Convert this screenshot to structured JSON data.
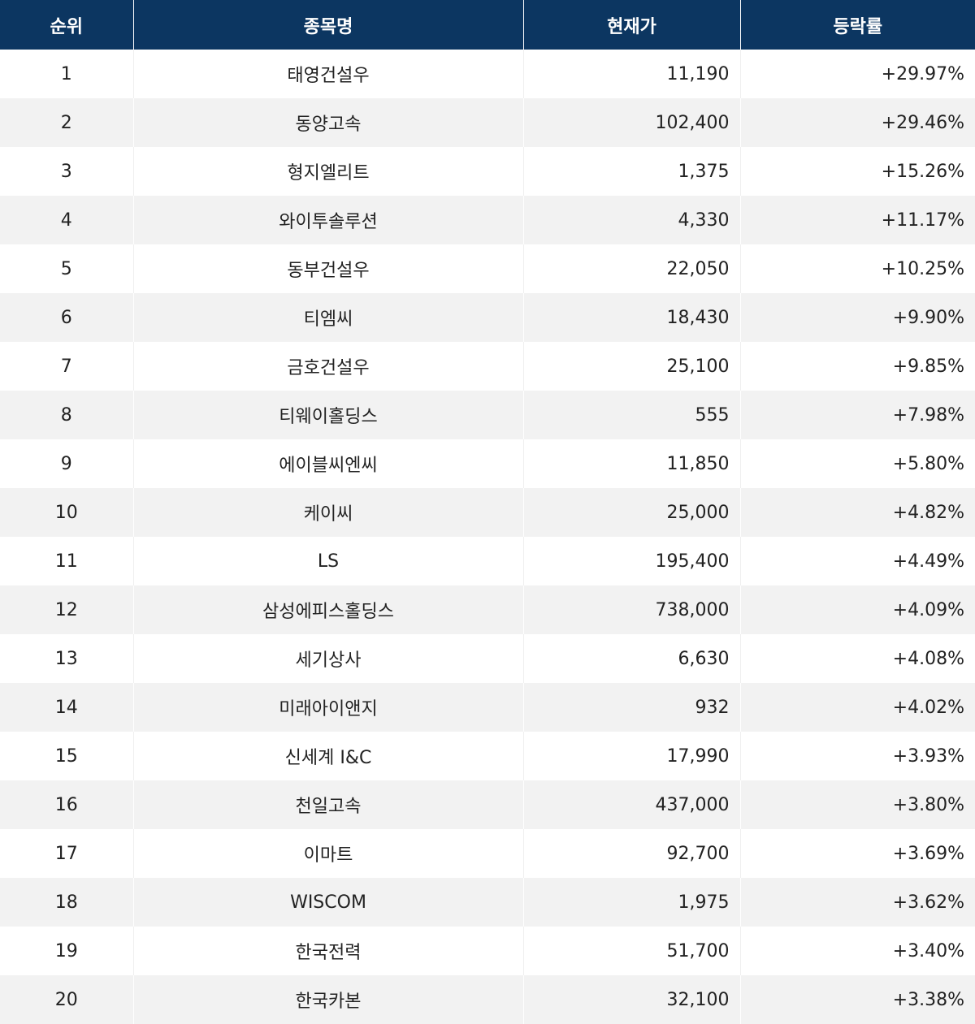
{
  "headers": {
    "rank": "순위",
    "name": "종목명",
    "price": "현재가",
    "change": "등락률"
  },
  "rows": [
    {
      "rank": "1",
      "name": "태영건설우",
      "price": "11,190",
      "change": "+29.97%"
    },
    {
      "rank": "2",
      "name": "동양고속",
      "price": "102,400",
      "change": "+29.46%"
    },
    {
      "rank": "3",
      "name": "형지엘리트",
      "price": "1,375",
      "change": "+15.26%"
    },
    {
      "rank": "4",
      "name": "와이투솔루션",
      "price": "4,330",
      "change": "+11.17%"
    },
    {
      "rank": "5",
      "name": "동부건설우",
      "price": "22,050",
      "change": "+10.25%"
    },
    {
      "rank": "6",
      "name": "티엠씨",
      "price": "18,430",
      "change": "+9.90%"
    },
    {
      "rank": "7",
      "name": "금호건설우",
      "price": "25,100",
      "change": "+9.85%"
    },
    {
      "rank": "8",
      "name": "티웨이홀딩스",
      "price": "555",
      "change": "+7.98%"
    },
    {
      "rank": "9",
      "name": "에이블씨엔씨",
      "price": "11,850",
      "change": "+5.80%"
    },
    {
      "rank": "10",
      "name": "케이씨",
      "price": "25,000",
      "change": "+4.82%"
    },
    {
      "rank": "11",
      "name": "LS",
      "price": "195,400",
      "change": "+4.49%"
    },
    {
      "rank": "12",
      "name": "삼성에피스홀딩스",
      "price": "738,000",
      "change": "+4.09%"
    },
    {
      "rank": "13",
      "name": "세기상사",
      "price": "6,630",
      "change": "+4.08%"
    },
    {
      "rank": "14",
      "name": "미래아이앤지",
      "price": "932",
      "change": "+4.02%"
    },
    {
      "rank": "15",
      "name": "신세계 I&C",
      "price": "17,990",
      "change": "+3.93%"
    },
    {
      "rank": "16",
      "name": "천일고속",
      "price": "437,000",
      "change": "+3.80%"
    },
    {
      "rank": "17",
      "name": "이마트",
      "price": "92,700",
      "change": "+3.69%"
    },
    {
      "rank": "18",
      "name": "WISCOM",
      "price": "1,975",
      "change": "+3.62%"
    },
    {
      "rank": "19",
      "name": "한국전력",
      "price": "51,700",
      "change": "+3.40%"
    },
    {
      "rank": "20",
      "name": "한국카본",
      "price": "32,100",
      "change": "+3.38%"
    }
  ],
  "colors": {
    "header_bg": "#0c3661",
    "header_text": "#ffffff",
    "row_alt_bg": "#f2f2f2",
    "text": "#222222"
  }
}
